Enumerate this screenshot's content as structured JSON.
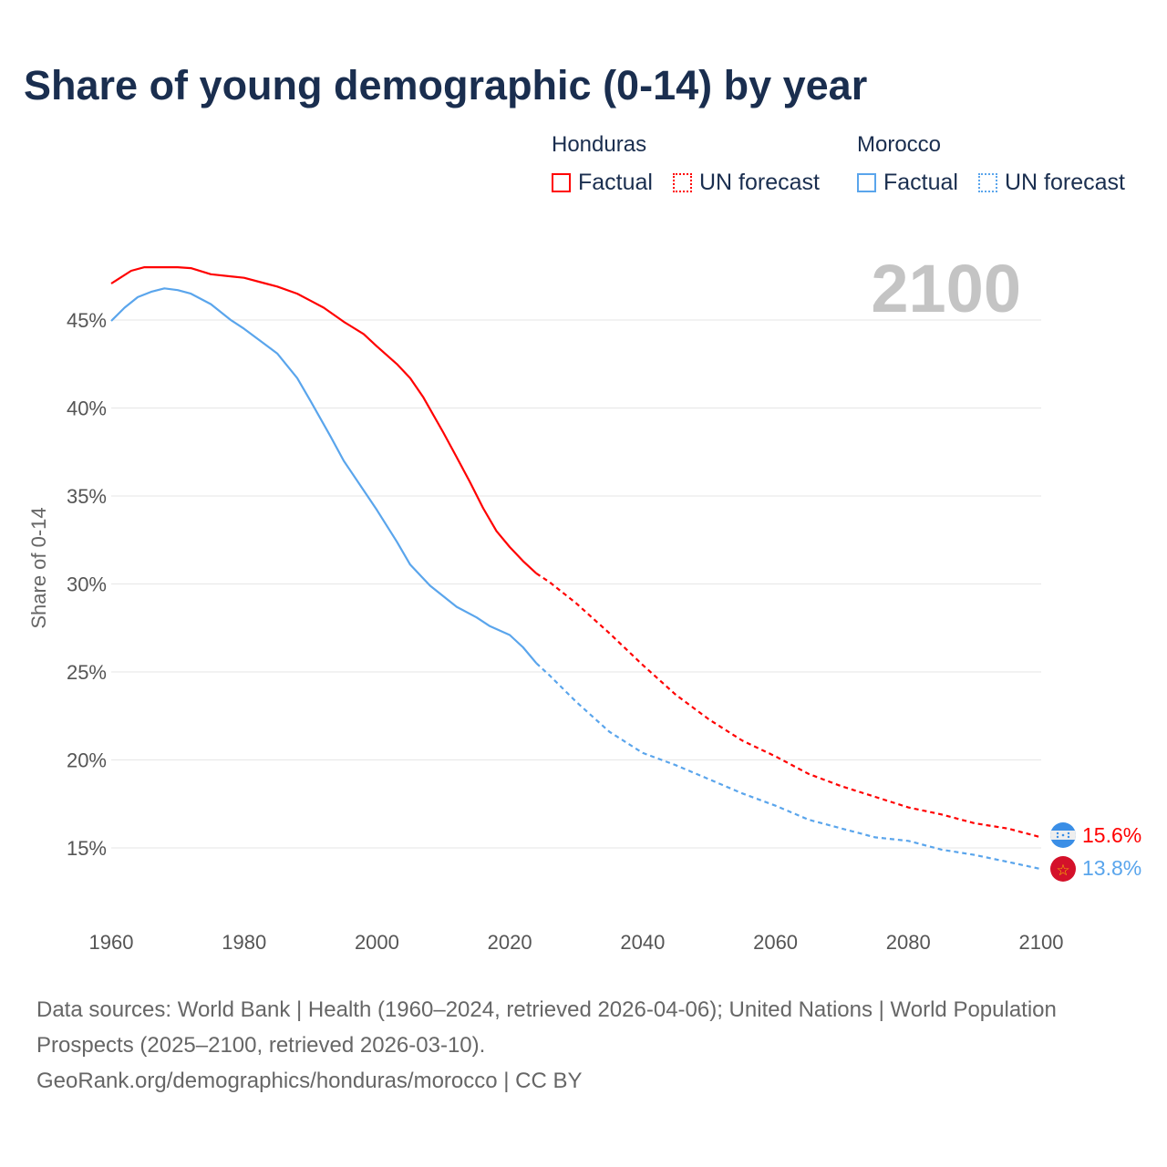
{
  "title": "Share of young demographic (0-14) by year",
  "legend": {
    "groups": [
      {
        "country": "Honduras",
        "factual": "Factual",
        "forecast": "UN forecast",
        "color": "#ff0000"
      },
      {
        "country": "Morocco",
        "factual": "Factual",
        "forecast": "UN forecast",
        "color": "#5aa5ec"
      }
    ]
  },
  "year_label": "2100",
  "end_labels": {
    "honduras": "15.6%",
    "morocco": "13.8%"
  },
  "footer": {
    "sources": "Data sources: World Bank | Health (1960–2024, retrieved 2026-04-06); United Nations | World Population Prospects (2025–2100, retrieved 2026-03-10).",
    "credit": "GeoRank.org/demographics/honduras/morocco | CC BY"
  },
  "chart_data": {
    "type": "line",
    "title": "Share of young demographic (0-14) by year",
    "xlabel": "",
    "ylabel": "Share of 0-14",
    "xlim": [
      1960,
      2100
    ],
    "ylim": [
      11.4,
      48.5
    ],
    "x_ticks": [
      "1960",
      "1980",
      "2000",
      "2020",
      "2040",
      "2060",
      "2080",
      "2100"
    ],
    "x_tick_values": [
      1960,
      1980,
      2000,
      2020,
      2040,
      2060,
      2080,
      2100
    ],
    "y_ticks": [
      "15%",
      "20%",
      "25%",
      "30%",
      "35%",
      "40%",
      "45%"
    ],
    "y_tick_values": [
      15,
      20,
      25,
      30,
      35,
      40,
      45
    ],
    "grid": true,
    "legend_position": "top-right",
    "series": [
      {
        "name": "Honduras",
        "color": "#ff0000",
        "factual": {
          "x": [
            1960,
            1963,
            1965,
            1970,
            1972,
            1975,
            1980,
            1983,
            1985,
            1988,
            1990,
            1992,
            1995,
            1998,
            2000,
            2003,
            2005,
            2007,
            2010,
            2012,
            2014,
            2016,
            2018,
            2020,
            2022,
            2024
          ],
          "y": [
            47.07,
            47.8,
            48.0,
            48.0,
            47.95,
            47.6,
            47.4,
            47.1,
            46.9,
            46.5,
            46.1,
            45.7,
            44.9,
            44.2,
            43.5,
            42.5,
            41.7,
            40.6,
            38.6,
            37.2,
            35.8,
            34.3,
            33.0,
            32.1,
            31.3,
            30.6
          ]
        },
        "forecast": {
          "x": [
            2024,
            2026,
            2030,
            2035,
            2040,
            2045,
            2050,
            2055,
            2060,
            2065,
            2070,
            2075,
            2080,
            2085,
            2090,
            2095,
            2100
          ],
          "y": [
            30.6,
            30.1,
            28.9,
            27.2,
            25.4,
            23.7,
            22.3,
            21.1,
            20.2,
            19.2,
            18.5,
            17.9,
            17.3,
            16.9,
            16.4,
            16.1,
            15.6
          ]
        }
      },
      {
        "name": "Morocco",
        "color": "#5aa5ec",
        "factual": {
          "x": [
            1960,
            1962,
            1964,
            1966,
            1968,
            1970,
            1972,
            1975,
            1978,
            1980,
            1985,
            1988,
            1990,
            1993,
            1995,
            2000,
            2003,
            2005,
            2008,
            2010,
            2012,
            2015,
            2017,
            2020,
            2022,
            2024
          ],
          "y": [
            44.95,
            45.7,
            46.3,
            46.6,
            46.8,
            46.7,
            46.5,
            45.9,
            45.0,
            44.5,
            43.1,
            41.7,
            40.4,
            38.4,
            37.0,
            34.2,
            32.4,
            31.1,
            29.9,
            29.3,
            28.7,
            28.1,
            27.6,
            27.1,
            26.4,
            25.5
          ]
        },
        "forecast": {
          "x": [
            2024,
            2026,
            2030,
            2035,
            2040,
            2045,
            2050,
            2055,
            2060,
            2065,
            2070,
            2075,
            2080,
            2085,
            2090,
            2095,
            2100
          ],
          "y": [
            25.5,
            24.8,
            23.3,
            21.6,
            20.4,
            19.7,
            18.9,
            18.1,
            17.4,
            16.6,
            16.1,
            15.6,
            15.4,
            14.9,
            14.6,
            14.2,
            13.8
          ]
        }
      }
    ]
  }
}
